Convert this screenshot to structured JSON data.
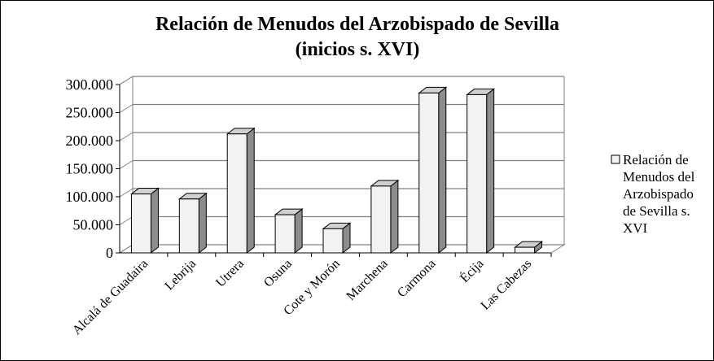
{
  "chart_data": {
    "type": "bar",
    "title": [
      "Relación de Menudos del Arzobispado de Sevilla",
      "(inicios s. XVI)"
    ],
    "categories": [
      "Alcalá de Guadaira",
      "Lebrija",
      "Utrera",
      "Osuna",
      "Cote y Morón",
      "Marchena",
      "Carmona",
      "Écija",
      "Las Cabezas"
    ],
    "series": [
      {
        "name": [
          "Relación de",
          "Menudos del",
          "Arzobispado",
          "de Sevilla s.",
          "XVI"
        ],
        "values": [
          105000,
          96000,
          212000,
          68000,
          43000,
          119000,
          285000,
          282000,
          10000
        ]
      }
    ],
    "yticks": [
      "0",
      "50.000",
      "100.000",
      "150.000",
      "200.000",
      "250.000",
      "300.000"
    ],
    "ylim": [
      0,
      300000
    ],
    "grid": true,
    "legend_position": "right",
    "colors": {
      "bar_front": "#f2f2f2",
      "bar_side": "#8c8c8c",
      "bar_top": "#d0d0d0",
      "grid": "#808080",
      "outline": "#000000"
    }
  }
}
